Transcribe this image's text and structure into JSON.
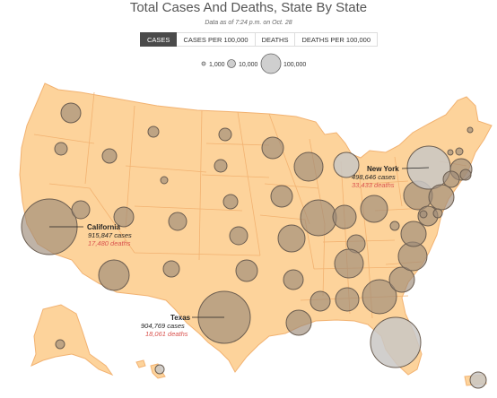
{
  "header": {
    "title": "Total Cases And Deaths, State By State",
    "subtitle": "Data as of 7:24 p.m. on Oct. 28"
  },
  "tabs": [
    {
      "label": "CASES",
      "active": true
    },
    {
      "label": "CASES PER 100,000",
      "active": false
    },
    {
      "label": "DEATHS",
      "active": false
    },
    {
      "label": "DEATHS PER 100,000",
      "active": false
    }
  ],
  "legend": {
    "items": [
      "1,000",
      "10,000",
      "100,000"
    ]
  },
  "colors": {
    "land": "#fdd39b",
    "border": "#f2b271",
    "bubble_fill": "#9c8a78",
    "bubble_stroke": "#6b5d50",
    "deaths_text": "#d9534f"
  },
  "chart_data": {
    "type": "proportional-symbol map",
    "metric": "cases",
    "callouts": [
      {
        "state": "California",
        "cases_text": "915,847 cases",
        "deaths_text": "17,480 deaths",
        "cases": 915847,
        "deaths": 17480
      },
      {
        "state": "New York",
        "cases_text": "498,646 cases",
        "deaths_text": "33,433 deaths",
        "cases": 498646,
        "deaths": 33433
      },
      {
        "state": "Texas",
        "cases_text": "904,769 cases",
        "deaths_text": "18,061 deaths",
        "cases": 904769,
        "deaths": 18061
      }
    ]
  }
}
